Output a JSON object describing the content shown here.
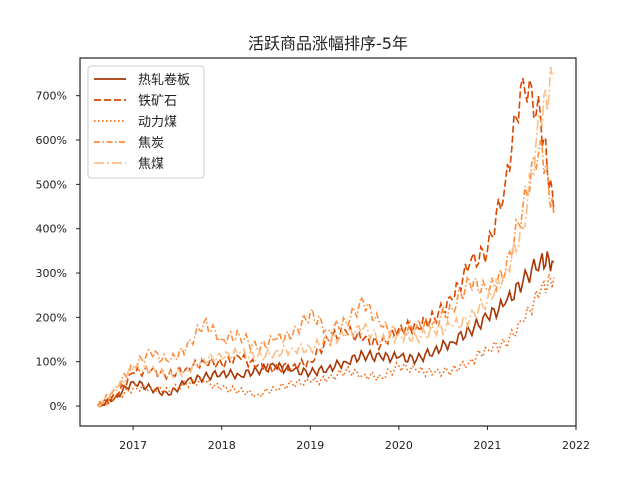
{
  "chart_data": {
    "type": "line",
    "title": "活跃商品涨幅排序-5年",
    "xlabel": "",
    "ylabel": "",
    "x_ticks": [
      "2017",
      "2018",
      "2019",
      "2020",
      "2021",
      "2022"
    ],
    "y_ticks": [
      "0%",
      "100%",
      "200%",
      "300%",
      "400%",
      "500%",
      "600%",
      "700%"
    ],
    "xlim": [
      2016.4,
      2022.0
    ],
    "ylim": [
      -45,
      785
    ],
    "grid": false,
    "legend_position": "top-left",
    "x": [
      2016.6,
      2016.8,
      2017.0,
      2017.2,
      2017.4,
      2017.6,
      2017.8,
      2018.0,
      2018.2,
      2018.4,
      2018.6,
      2018.8,
      2019.0,
      2019.2,
      2019.4,
      2019.6,
      2019.8,
      2020.0,
      2020.2,
      2020.4,
      2020.6,
      2020.8,
      2021.0,
      2021.2,
      2021.4,
      2021.6,
      2021.75
    ],
    "series": [
      {
        "name": "热轧卷板",
        "color": "#a63603",
        "dash": "solid",
        "values": [
          0,
          20,
          55,
          40,
          25,
          55,
          65,
          75,
          70,
          80,
          90,
          80,
          75,
          85,
          100,
          115,
          110,
          110,
          105,
          125,
          145,
          170,
          200,
          230,
          280,
          330,
          325
        ]
      },
      {
        "name": "铁矿石",
        "color": "#d94801",
        "dash": "dashed",
        "values": [
          0,
          20,
          75,
          80,
          70,
          85,
          100,
          95,
          110,
          90,
          85,
          90,
          100,
          150,
          170,
          150,
          140,
          175,
          180,
          200,
          240,
          320,
          350,
          500,
          740,
          650,
          440
        ]
      },
      {
        "name": "动力煤",
        "color": "#f16913",
        "dash": "dotted",
        "values": [
          0,
          20,
          40,
          40,
          35,
          50,
          55,
          40,
          35,
          25,
          40,
          50,
          55,
          60,
          80,
          70,
          65,
          90,
          80,
          75,
          80,
          100,
          130,
          140,
          190,
          260,
          290
        ]
      },
      {
        "name": "焦炭",
        "color": "#fd8d3c",
        "dash": "dashdot",
        "values": [
          0,
          40,
          90,
          120,
          100,
          130,
          190,
          150,
          160,
          130,
          150,
          160,
          210,
          170,
          190,
          235,
          180,
          165,
          180,
          190,
          220,
          280,
          260,
          300,
          450,
          600,
          430
        ]
      },
      {
        "name": "焦煤",
        "color": "#fdbe85",
        "dash": "longdashdot",
        "values": [
          0,
          35,
          85,
          80,
          70,
          80,
          105,
          110,
          120,
          110,
          120,
          130,
          130,
          150,
          160,
          175,
          150,
          160,
          155,
          170,
          180,
          195,
          240,
          300,
          400,
          650,
          750
        ]
      }
    ]
  }
}
